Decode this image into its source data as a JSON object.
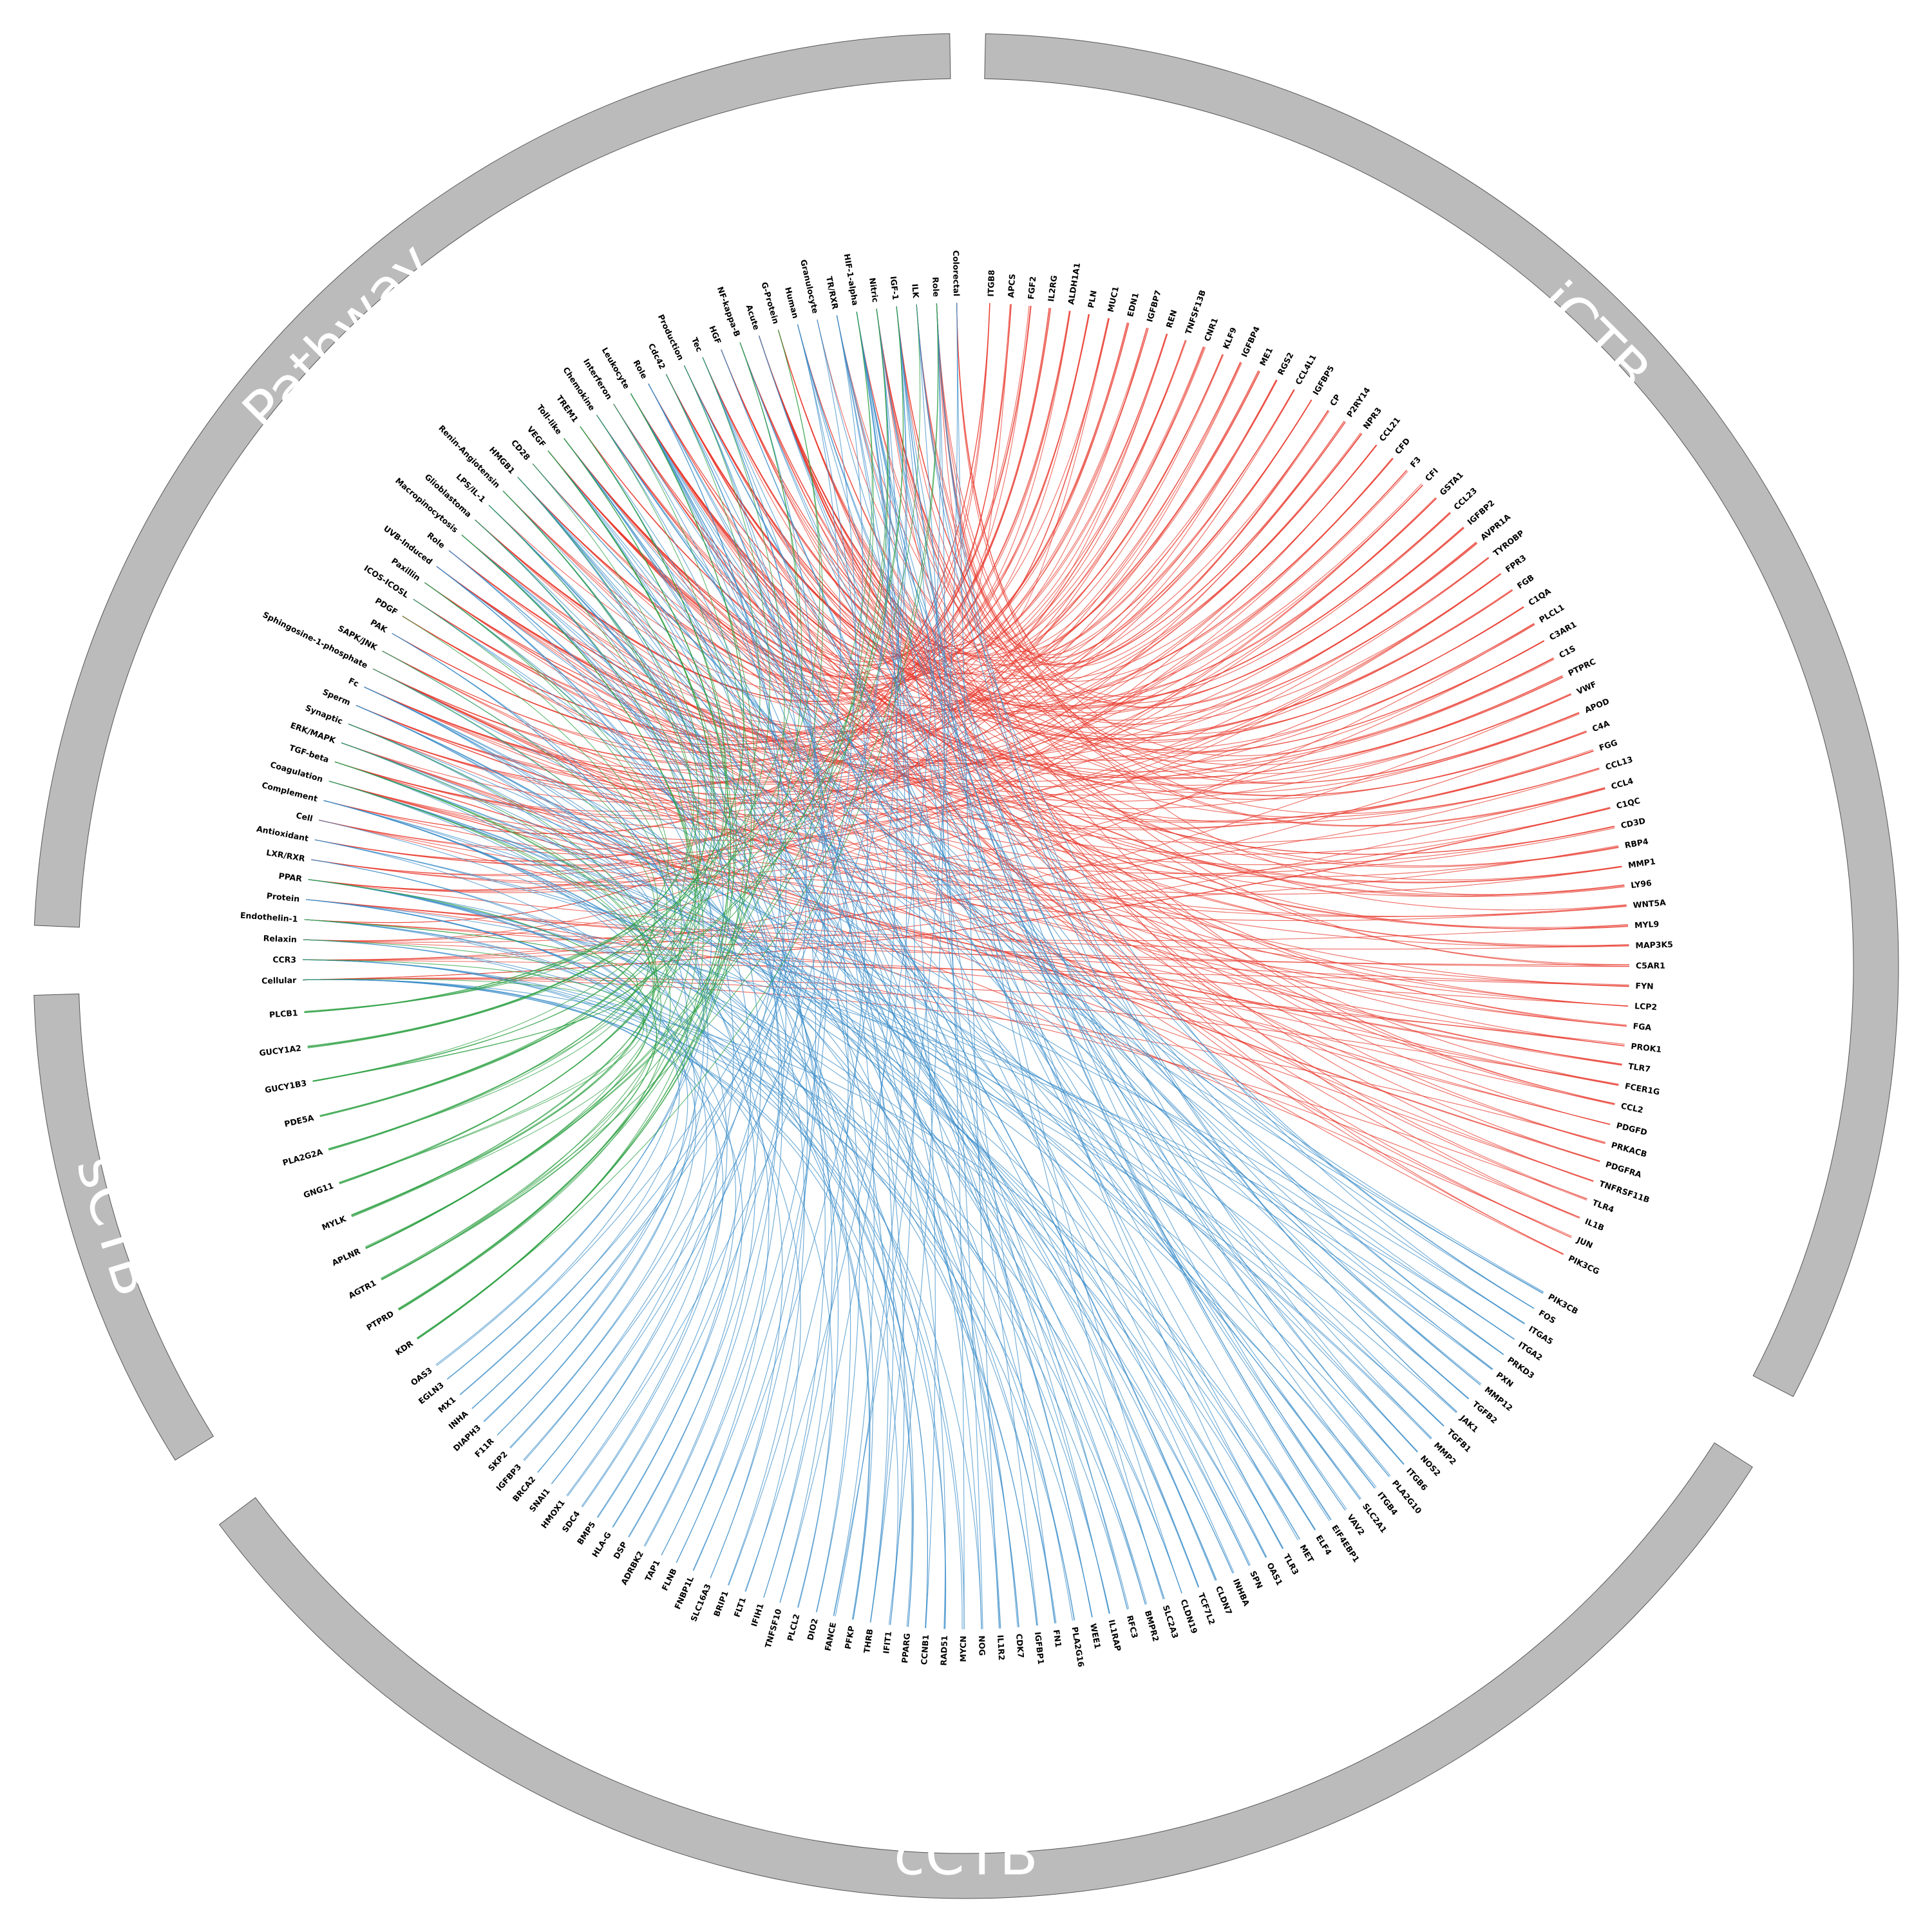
{
  "sectors": [
    {
      "id": "iCTB",
      "title": "iCTB",
      "color": "#e8392e",
      "nodes": [
        "ITGB8",
        "APCS",
        "FGF2",
        "IL2RG",
        "ALDH1A1",
        "PLN",
        "MUC1",
        "EDN1",
        "IGFBP7",
        "REN",
        "TNFSF13B",
        "CNR1",
        "KLF9",
        "IGFBP4",
        "ME1",
        "RGS2",
        "CCL4L1",
        "IGFBP5",
        "CP",
        "P2RY14",
        "NPR3",
        "CCL21",
        "CFD",
        "F3",
        "CFI",
        "GSTA1",
        "CCL23",
        "IGFBP2",
        "AVPR1A",
        "TYROBP",
        "FPR3",
        "FGB",
        "C1QA",
        "PLCL1",
        "C3AR1",
        "C1S",
        "PTPRC",
        "VWF",
        "APOD",
        "C4A",
        "FGG",
        "CCL13",
        "CCL4",
        "C1QC",
        "CD3D",
        "RBP4",
        "MMP1",
        "LY96",
        "WNT5A",
        "MYL9",
        "MAP3K5",
        "C5AR1",
        "FYN",
        "LCP2",
        "FGA",
        "PROK1",
        "TLR7",
        "FCER1G",
        "CCL2",
        "PDGFD",
        "PRKACB",
        "PDGFRA",
        "TNFRSF11B",
        "TLR4",
        "IL1B",
        "JUN",
        "PIK3CG"
      ]
    },
    {
      "id": "cCTB",
      "title": "cCTB",
      "color": "#3a8cc8",
      "nodes": [
        "PIK3CB",
        "FOS",
        "ITGA5",
        "ITGA2",
        "PRKD3",
        "PXN",
        "MMP12",
        "TGFB2",
        "JAK1",
        "TGFB1",
        "MMP2",
        "NOS2",
        "ITGB6",
        "PLA2G10",
        "ITGB4",
        "SLC2A1",
        "VAV2",
        "EIF4EBP1",
        "ELF4",
        "MET",
        "TLR3",
        "OAS1",
        "SPN",
        "INHBA",
        "CLDN7",
        "TCF7L2",
        "CLDN19",
        "SLC2A3",
        "BMPR2",
        "RFC3",
        "IL1RAP",
        "WEE1",
        "PLA2G16",
        "FN1",
        "IGFBP1",
        "CDK7",
        "IL1R2",
        "NOG",
        "MYCN",
        "RAD51",
        "CCNB1",
        "PPARG",
        "IFIT1",
        "THRB",
        "PFKP",
        "FANCE",
        "DIO2",
        "PLCL2",
        "TNFSF10",
        "IFIH1",
        "FLT1",
        "BRIP1",
        "SLC16A3",
        "FNBP1L",
        "FLNB",
        "TAP1",
        "ADRBK2",
        "DSP",
        "HLA-G",
        "BMP5",
        "SDC4",
        "HMOX1",
        "SNAI1",
        "BRCA2",
        "IGFBP3",
        "SKP2",
        "F11R",
        "DIAPH3",
        "INHA",
        "MX1",
        "EGLN3",
        "OAS3"
      ]
    },
    {
      "id": "sCTB",
      "title": "sCTB",
      "color": "#2ea043",
      "nodes": [
        "KDR",
        "PTPRD",
        "AGTR1",
        "APLNR",
        "MYLK",
        "GNG11",
        "PLA2G2A",
        "PDE5A",
        "GUCY1B3",
        "GUCY1A2",
        "PLCB1"
      ]
    },
    {
      "id": "Pathway",
      "title": "Pathway",
      "color": "#888888",
      "nodes": [
        "Cellular",
        "CCR3",
        "Relaxin",
        "Endothelin-1",
        "Protein",
        "PPAR",
        "LXR/RXR",
        "Antioxidant",
        "Cell",
        "Complement",
        "Coagulation",
        "TGF-beta",
        "ERK/MAPK",
        "Synaptic",
        "Sperm",
        "Fc",
        "Sphingosine-1-phosphate",
        "SAPK/JNK",
        "PAK",
        "PDGF",
        "ICOS-ICOSL",
        "Paxillin",
        "UVB-Induced",
        "Role",
        "Macropinocytosis",
        "Glioblastoma",
        "LPS/IL-1",
        "Renin-Angiotensin",
        "HMGB1",
        "CD28",
        "VEGF",
        "Toll-like",
        "TREM1",
        "Chemokine",
        "Interferon",
        "Leukocyte",
        "Role",
        "Cdc42",
        "Production",
        "Tec",
        "HGF",
        "NF-kappa-B",
        "Acute",
        "G-Protein",
        "Human",
        "Granulocyte",
        "TR/RXR",
        "HIF-1-alpha",
        "Nitric",
        "IGF-1",
        "ILK",
        "Role",
        "Colorectal"
      ]
    }
  ]
}
